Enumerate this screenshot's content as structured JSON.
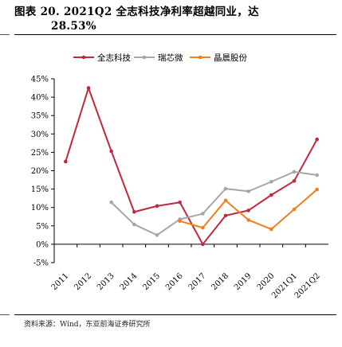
{
  "title": {
    "line1": "图表 20. 2021Q2 全志科技净利率超越同业，达",
    "line2": "28.53%"
  },
  "source": "资料来源：Wind，东亚前海证券研究所",
  "chart_data": {
    "type": "line",
    "categories": [
      "2011",
      "2012",
      "2013",
      "2014",
      "2015",
      "2016",
      "2017",
      "2018",
      "2019",
      "2020",
      "2021Q1",
      "2021Q2"
    ],
    "ylim": [
      -5,
      45
    ],
    "yticks": [
      -5,
      0,
      5,
      10,
      15,
      20,
      25,
      30,
      35,
      40,
      45
    ],
    "ytick_labels": [
      "-5%",
      "0%",
      "5%",
      "10%",
      "15%",
      "20%",
      "25%",
      "30%",
      "35%",
      "40%",
      "45%"
    ],
    "grid": false,
    "legend_position": "top",
    "series": [
      {
        "name": "全志科技",
        "color": "#c0283c",
        "values": [
          22.5,
          42.5,
          25.3,
          8.8,
          10.4,
          11.4,
          0.0,
          7.8,
          9.2,
          13.4,
          17.2,
          28.53
        ]
      },
      {
        "name": "瑞芯微",
        "color": "#a6a6a6",
        "values": [
          null,
          null,
          11.4,
          5.4,
          2.5,
          6.8,
          8.3,
          15.1,
          14.4,
          17.0,
          19.7,
          18.8
        ]
      },
      {
        "name": "晶晨股份",
        "color": "#f07f1c",
        "values": [
          null,
          null,
          null,
          null,
          null,
          6.3,
          4.5,
          11.9,
          6.6,
          4.1,
          9.5,
          14.9
        ]
      }
    ]
  }
}
